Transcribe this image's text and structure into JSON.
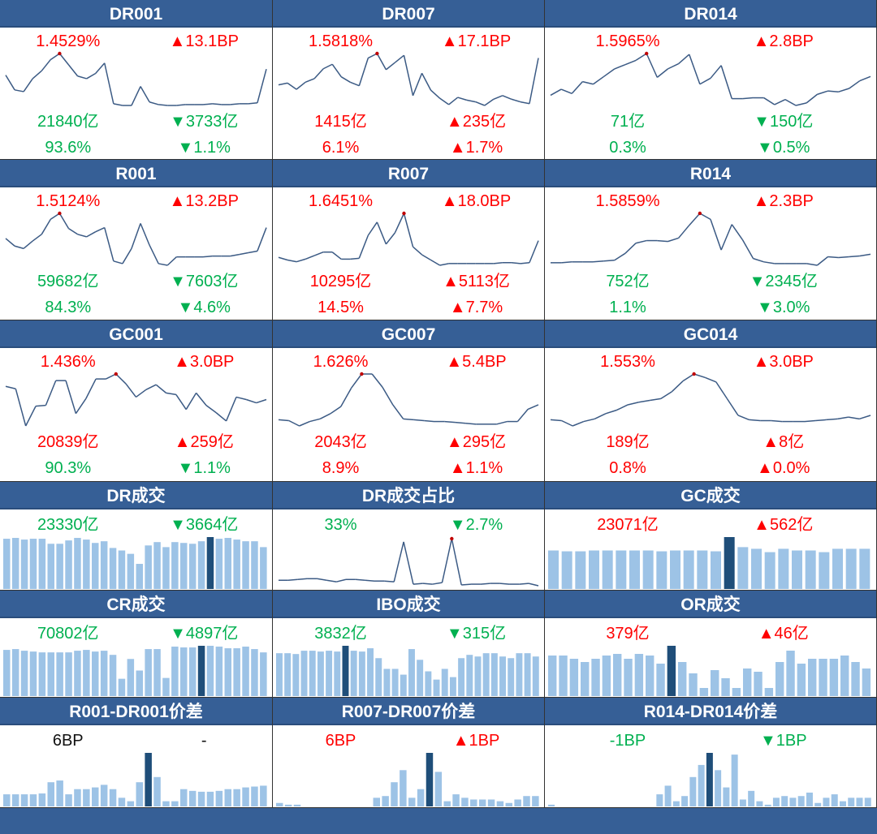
{
  "colors": {
    "header": "#365f96",
    "red": "#ff0000",
    "green": "#00b050",
    "line": "#3b5a84",
    "bar": "#9dc3e6",
    "bar_highlight": "#1f4e79",
    "max_marker": "#c00000"
  },
  "chart_data": [
    {
      "title": "DR001",
      "type": "line",
      "stats": [
        [
          {
            "text": "1.4529%",
            "color": "red"
          },
          {
            "text": "▲13.1BP",
            "color": "red"
          }
        ],
        [
          {
            "text": "21840亿",
            "color": "green"
          },
          {
            "text": "▼3733亿",
            "color": "green"
          }
        ],
        [
          {
            "text": "93.6%",
            "color": "green"
          },
          {
            "text": "▼1.1%",
            "color": "green"
          }
        ]
      ],
      "values": [
        40,
        23,
        21,
        36,
        45,
        58,
        65,
        52,
        39,
        36,
        42,
        54,
        7,
        5,
        5,
        27,
        9,
        6,
        5,
        5,
        6,
        6,
        6,
        7,
        6,
        6,
        7,
        7,
        8,
        47
      ]
    },
    {
      "title": "DR007",
      "type": "line",
      "stats": [
        [
          {
            "text": "1.5818%",
            "color": "red"
          },
          {
            "text": "▲17.1BP",
            "color": "red"
          }
        ],
        [
          {
            "text": "1415亿",
            "color": "red"
          },
          {
            "text": "▲235亿",
            "color": "red"
          }
        ],
        [
          {
            "text": "6.1%",
            "color": "red"
          },
          {
            "text": "▲1.7%",
            "color": "red"
          }
        ]
      ],
      "values": [
        35,
        37,
        30,
        38,
        42,
        53,
        58,
        44,
        38,
        34,
        65,
        70,
        52,
        60,
        68,
        23,
        48,
        29,
        20,
        13,
        21,
        18,
        16,
        12,
        19,
        23,
        19,
        16,
        14,
        65
      ]
    },
    {
      "title": "DR014",
      "type": "line",
      "stats": [
        [
          {
            "text": "1.5965%",
            "color": "red"
          },
          {
            "text": "▲2.8BP",
            "color": "red"
          }
        ],
        [
          {
            "text": "71亿",
            "color": "green"
          },
          {
            "text": "▼150亿",
            "color": "green"
          }
        ],
        [
          {
            "text": "0.3%",
            "color": "green"
          },
          {
            "text": "▼0.5%",
            "color": "green"
          }
        ]
      ],
      "values": [
        23,
        30,
        25,
        39,
        36,
        45,
        54,
        59,
        64,
        72,
        44,
        54,
        60,
        71,
        36,
        43,
        58,
        19,
        19,
        20,
        20,
        12,
        18,
        11,
        14,
        24,
        28,
        27,
        31,
        40,
        45
      ]
    },
    {
      "title": "R001",
      "type": "line",
      "stats": [
        [
          {
            "text": "1.5124%",
            "color": "red"
          },
          {
            "text": "▲13.2BP",
            "color": "red"
          }
        ],
        [
          {
            "text": "59682亿",
            "color": "green"
          },
          {
            "text": "▼7603亿",
            "color": "green"
          }
        ],
        [
          {
            "text": "84.3%",
            "color": "green"
          },
          {
            "text": "▼4.6%",
            "color": "green"
          }
        ]
      ],
      "values": [
        40,
        31,
        28,
        37,
        45,
        63,
        70,
        52,
        45,
        42,
        48,
        53,
        13,
        10,
        28,
        58,
        32,
        10,
        8,
        18,
        18,
        18,
        18,
        19,
        19,
        19,
        21,
        23,
        25,
        53
      ]
    },
    {
      "title": "R007",
      "type": "line",
      "stats": [
        [
          {
            "text": "1.6451%",
            "color": "red"
          },
          {
            "text": "▲18.0BP",
            "color": "red"
          }
        ],
        [
          {
            "text": "10295亿",
            "color": "red"
          },
          {
            "text": "▲5113亿",
            "color": "red"
          }
        ],
        [
          {
            "text": "14.5%",
            "color": "red"
          },
          {
            "text": "▲7.7%",
            "color": "red"
          }
        ]
      ],
      "values": [
        20,
        17,
        15,
        18,
        22,
        26,
        26,
        18,
        18,
        19,
        45,
        60,
        35,
        48,
        70,
        32,
        23,
        17,
        11,
        13,
        13,
        13,
        13,
        13,
        13,
        14,
        14,
        13,
        14,
        39
      ]
    },
    {
      "title": "R014",
      "type": "line",
      "stats": [
        [
          {
            "text": "1.5859%",
            "color": "red"
          },
          {
            "text": "▲2.3BP",
            "color": "red"
          }
        ],
        [
          {
            "text": "752亿",
            "color": "green"
          },
          {
            "text": "▼2345亿",
            "color": "green"
          }
        ],
        [
          {
            "text": "1.1%",
            "color": "green"
          },
          {
            "text": "▼3.0%",
            "color": "green"
          }
        ]
      ],
      "values": [
        12,
        12,
        13,
        13,
        13,
        14,
        15,
        23,
        35,
        38,
        38,
        37,
        41,
        56,
        70,
        63,
        27,
        57,
        39,
        17,
        13,
        11,
        11,
        11,
        11,
        9,
        19,
        18,
        19,
        20,
        22
      ]
    },
    {
      "title": "GC001",
      "type": "line",
      "stats": [
        [
          {
            "text": "1.436%",
            "color": "red"
          },
          {
            "text": "▲3.0BP",
            "color": "red"
          }
        ],
        [
          {
            "text": "20839亿",
            "color": "red"
          },
          {
            "text": "▲259亿",
            "color": "red"
          }
        ],
        [
          {
            "text": "90.3%",
            "color": "green"
          },
          {
            "text": "▼1.1%",
            "color": "green"
          }
        ]
      ],
      "values": [
        58,
        55,
        10,
        34,
        35,
        65,
        65,
        25,
        43,
        67,
        67,
        73,
        61,
        45,
        54,
        60,
        50,
        48,
        30,
        50,
        35,
        26,
        16,
        45,
        42,
        38,
        42
      ]
    },
    {
      "title": "GC007",
      "type": "line",
      "stats": [
        [
          {
            "text": "1.626%",
            "color": "red"
          },
          {
            "text": "▲5.4BP",
            "color": "red"
          }
        ],
        [
          {
            "text": "2043亿",
            "color": "red"
          },
          {
            "text": "▲295亿",
            "color": "red"
          }
        ],
        [
          {
            "text": "8.9%",
            "color": "red"
          },
          {
            "text": "▲1.1%",
            "color": "red"
          }
        ]
      ],
      "values": [
        18,
        17,
        11,
        16,
        19,
        25,
        33,
        54,
        70,
        70,
        55,
        35,
        19,
        18,
        17,
        16,
        16,
        15,
        14,
        13,
        13,
        13,
        16,
        16,
        30,
        35
      ]
    },
    {
      "title": "GC014",
      "type": "line",
      "stats": [
        [
          {
            "text": "1.553%",
            "color": "red"
          },
          {
            "text": "▲3.0BP",
            "color": "red"
          }
        ],
        [
          {
            "text": "189亿",
            "color": "red"
          },
          {
            "text": "▲8亿",
            "color": "red"
          }
        ],
        [
          {
            "text": "0.8%",
            "color": "red"
          },
          {
            "text": "▲0.0%",
            "color": "red"
          }
        ]
      ],
      "values": [
        18,
        17,
        11,
        16,
        19,
        25,
        29,
        35,
        38,
        40,
        42,
        50,
        62,
        70,
        66,
        61,
        42,
        23,
        18,
        17,
        17,
        16,
        16,
        16,
        17,
        18,
        19,
        21,
        19,
        23
      ]
    },
    {
      "title": "DR成交",
      "type": "bar",
      "stats": [
        [
          {
            "text": "23330亿",
            "color": "green"
          },
          {
            "text": "▼3664亿",
            "color": "green"
          }
        ]
      ],
      "values": [
        60,
        61,
        59,
        60,
        60,
        54,
        54,
        58,
        61,
        59,
        55,
        57,
        49,
        46,
        42,
        30,
        52,
        56,
        50,
        56,
        55,
        54,
        57,
        62,
        60,
        61,
        59,
        57,
        57,
        50
      ],
      "highlight_index": 23
    },
    {
      "title": "DR成交占比",
      "type": "line",
      "stats": [
        [
          {
            "text": "33%",
            "color": "green"
          },
          {
            "text": "▼2.7%",
            "color": "green"
          }
        ]
      ],
      "values": [
        13,
        13,
        14,
        15,
        15,
        13,
        11,
        14,
        14,
        13,
        12,
        12,
        11,
        62,
        8,
        9,
        8,
        10,
        66,
        7,
        8,
        8,
        9,
        9,
        8,
        8,
        9,
        6
      ]
    },
    {
      "title": "GC成交",
      "type": "bar",
      "stats": [
        [
          {
            "text": "23071亿",
            "color": "red"
          },
          {
            "text": "▲562亿",
            "color": "red"
          }
        ]
      ],
      "values": [
        46,
        45,
        45,
        46,
        46,
        46,
        46,
        46,
        45,
        46,
        46,
        46,
        45,
        62,
        50,
        48,
        44,
        48,
        46,
        46,
        44,
        48,
        48,
        48
      ],
      "highlight_index": 13
    },
    {
      "title": "CR成交",
      "type": "bar",
      "stats": [
        [
          {
            "text": "70802亿",
            "color": "green"
          },
          {
            "text": "▼4897亿",
            "color": "green"
          }
        ]
      ],
      "values": [
        56,
        57,
        55,
        54,
        53,
        53,
        53,
        53,
        55,
        56,
        54,
        55,
        50,
        21,
        45,
        31,
        57,
        57,
        22,
        60,
        59,
        59,
        61,
        61,
        60,
        58,
        58,
        60,
        57,
        53
      ],
      "highlight_index": 22
    },
    {
      "title": "IBO成交",
      "type": "bar",
      "stats": [
        [
          {
            "text": "3832亿",
            "color": "green"
          },
          {
            "text": "▼315亿",
            "color": "green"
          }
        ]
      ],
      "values": [
        52,
        52,
        51,
        55,
        55,
        54,
        55,
        54,
        61,
        55,
        54,
        58,
        46,
        33,
        33,
        26,
        57,
        44,
        30,
        20,
        33,
        23,
        46,
        50,
        48,
        52,
        52,
        48,
        46,
        52,
        52,
        48
      ],
      "highlight_index": 8
    },
    {
      "title": "OR成交",
      "type": "bar",
      "stats": [
        [
          {
            "text": "379亿",
            "color": "red"
          },
          {
            "text": "▲46亿",
            "color": "red"
          }
        ]
      ],
      "values": [
        50,
        50,
        46,
        42,
        46,
        50,
        52,
        46,
        52,
        50,
        40,
        62,
        42,
        28,
        10,
        32,
        22,
        10,
        34,
        30,
        10,
        42,
        56,
        40,
        46,
        46,
        46,
        50,
        42,
        34
      ],
      "highlight_index": 11
    },
    {
      "title": "R001-DR001价差",
      "type": "bar",
      "stats": [
        [
          {
            "text": "6BP",
            "color": "black"
          },
          {
            "text": "-",
            "color": "black"
          }
        ]
      ],
      "values": [
        14,
        14,
        14,
        14,
        15,
        28,
        30,
        14,
        20,
        20,
        22,
        25,
        20,
        10,
        6,
        28,
        62,
        34,
        6,
        6,
        20,
        18,
        17,
        17,
        18,
        20,
        20,
        22,
        23,
        24
      ],
      "highlight_index": 16
    },
    {
      "title": "R007-DR007价差",
      "type": "bar",
      "stats": [
        [
          {
            "text": "6BP",
            "color": "red"
          },
          {
            "text": "▲1BP",
            "color": "red"
          }
        ]
      ],
      "values": [
        4,
        2,
        2,
        0,
        0,
        0,
        0,
        0,
        0,
        0,
        0,
        10,
        12,
        28,
        42,
        10,
        20,
        62,
        40,
        6,
        14,
        10,
        8,
        8,
        8,
        6,
        4,
        8,
        12,
        12
      ],
      "highlight_index": 17
    },
    {
      "title": "R014-DR014价差",
      "type": "bar",
      "stats": [
        [
          {
            "text": "-1BP",
            "color": "green"
          },
          {
            "text": "▼1BP",
            "color": "green"
          }
        ]
      ],
      "values": [
        2,
        0,
        0,
        0,
        0,
        0,
        0,
        0,
        0,
        0,
        0,
        0,
        0,
        14,
        24,
        6,
        12,
        34,
        48,
        62,
        42,
        22,
        60,
        8,
        18,
        6,
        2,
        10,
        12,
        10,
        12,
        16,
        4,
        10,
        14,
        6,
        10,
        10,
        10
      ],
      "highlight_index": 19
    }
  ]
}
